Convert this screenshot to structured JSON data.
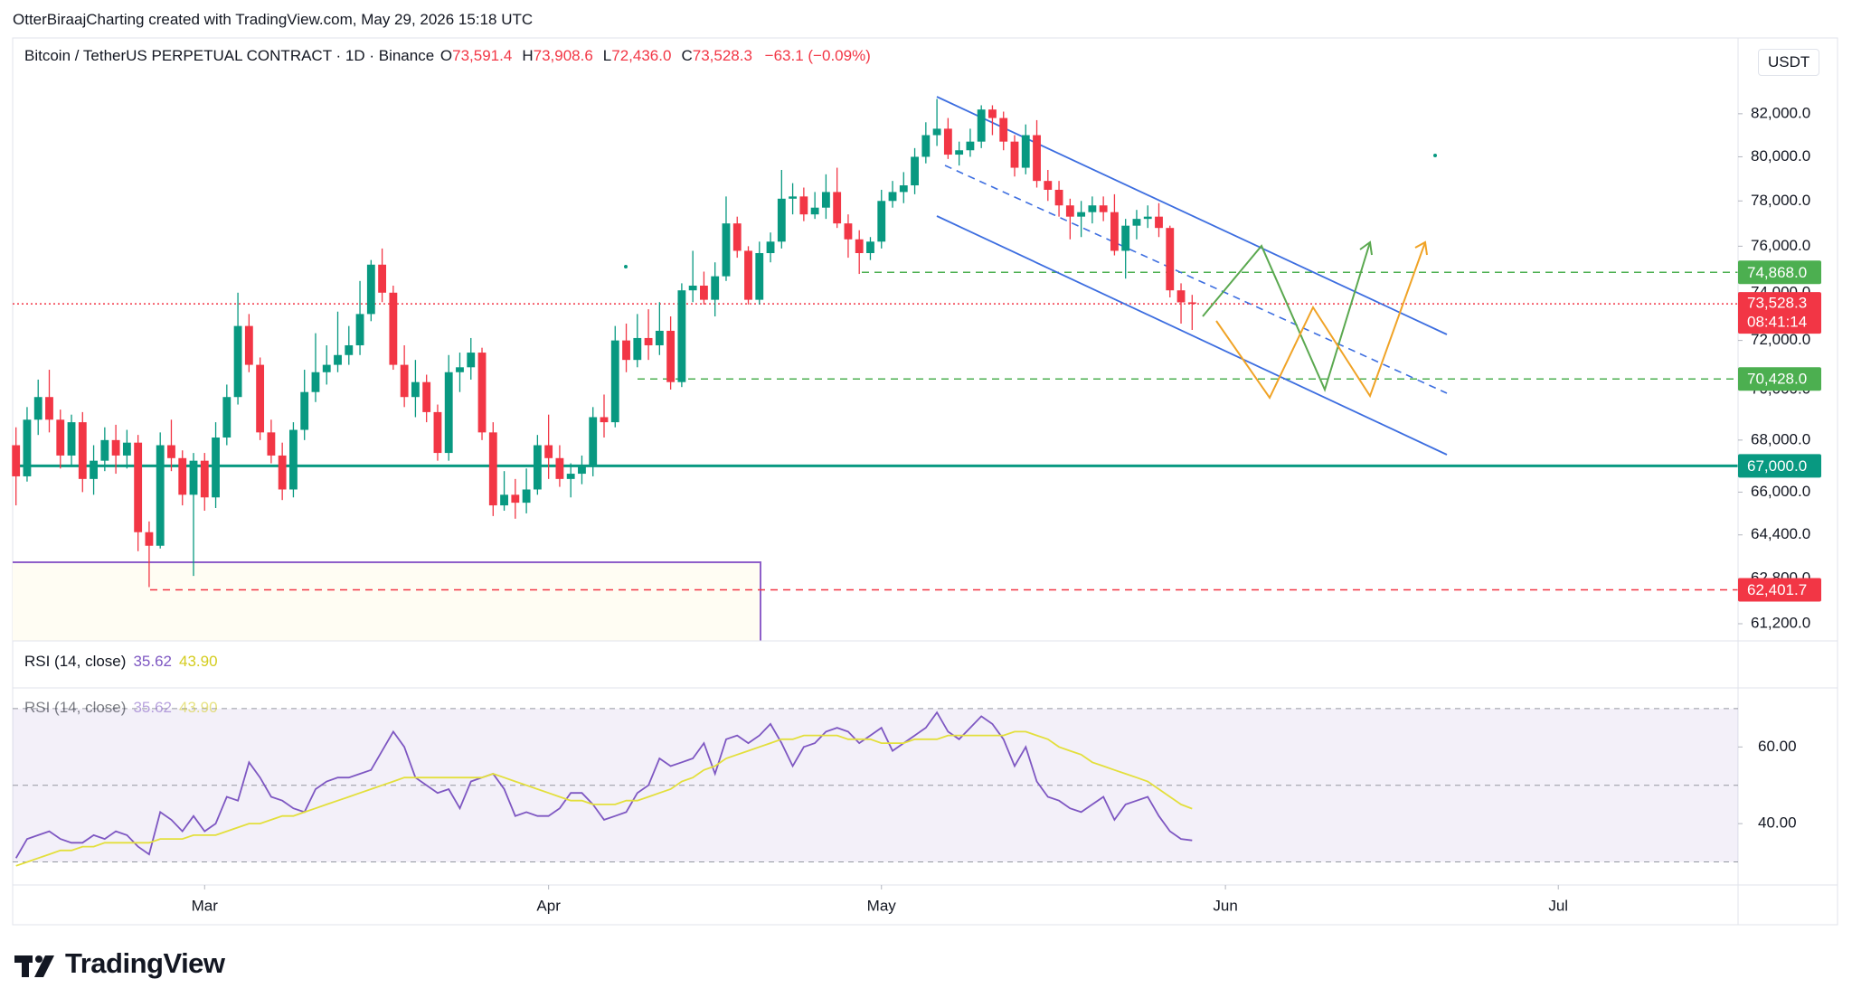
{
  "header": "OtterBiraajCharting created with TradingView.com, May 29, 2026 15:18 UTC",
  "footer": "TradingView",
  "chart_data": [
    {
      "type": "candlestick",
      "legend": {
        "symbol": "Bitcoin / TetherUS PERPETUAL CONTRACT · 1D · Binance",
        "ohlc": [
          [
            "O",
            "73,591.4"
          ],
          [
            "H",
            "73,908.6"
          ],
          [
            "L",
            "72,436.0"
          ],
          [
            "C",
            "73,528.3"
          ]
        ],
        "change": "−63.1 (−0.09%)"
      },
      "currency": "USDT",
      "up_color": "#089981",
      "down_color": "#f23645",
      "log_scale": true,
      "ylim": [
        60600,
        85600
      ],
      "yticks": [
        {
          "value": 82000,
          "label": "82,000.0"
        },
        {
          "value": 80000,
          "label": "80,000.0"
        },
        {
          "value": 78000,
          "label": "78,000.0"
        },
        {
          "value": 76000,
          "label": "76,000.0"
        },
        {
          "value": 74000,
          "label": "74,000.0"
        },
        {
          "value": 72000,
          "label": "72,000.0"
        },
        {
          "value": 70000,
          "label": "70,000.0"
        },
        {
          "value": 68000,
          "label": "68,000.0"
        },
        {
          "value": 66000,
          "label": "66,000.0"
        },
        {
          "value": 64400,
          "label": "64,400.0"
        },
        {
          "value": 62800,
          "label": "62,800.0"
        },
        {
          "value": 61200,
          "label": "61,200.0"
        }
      ],
      "xlim": [
        -0.3,
        155.2
      ],
      "xticks": [
        {
          "value": 17,
          "label": "Mar"
        },
        {
          "value": 48,
          "label": "Apr"
        },
        {
          "value": 78,
          "label": "May"
        },
        {
          "value": 109,
          "label": "Jun"
        },
        {
          "value": 139,
          "label": "Jul"
        }
      ],
      "levels": [
        {
          "value": 74868.0,
          "label": "74,868.0",
          "color": "#4caf50",
          "style": "dashed"
        },
        {
          "value": 70428.0,
          "label": "70,428.0",
          "color": "#4caf50",
          "style": "dashed"
        },
        {
          "value": 67000.0,
          "label": "67,000.0",
          "color": "#089981",
          "style": "solid"
        },
        {
          "value": 62401.7,
          "label": "62,401.7",
          "color": "#f23645",
          "style": "dashed"
        }
      ],
      "last_price": {
        "value": 73528.3,
        "label": "73,528.3",
        "countdown": "08:41:14",
        "color": "#f23645"
      },
      "candles": [
        [
          67800,
          68500,
          65500,
          66600
        ],
        [
          66600,
          69300,
          66400,
          68800
        ],
        [
          68800,
          70400,
          68200,
          69700
        ],
        [
          69700,
          70800,
          68300,
          68800
        ],
        [
          68800,
          69200,
          66900,
          67400
        ],
        [
          67400,
          69000,
          67000,
          68700
        ],
        [
          68700,
          69100,
          66000,
          66500
        ],
        [
          66500,
          67800,
          65900,
          67200
        ],
        [
          67200,
          68500,
          66800,
          68000
        ],
        [
          68000,
          68600,
          66700,
          67400
        ],
        [
          67400,
          68400,
          66900,
          67900
        ],
        [
          67900,
          68200,
          63800,
          64500
        ],
        [
          64500,
          64900,
          62500,
          64000
        ],
        [
          64000,
          68300,
          63900,
          67800
        ],
        [
          67800,
          68800,
          66800,
          67300
        ],
        [
          67300,
          67600,
          65500,
          65900
        ],
        [
          65900,
          67500,
          62900,
          67200
        ],
        [
          67200,
          67500,
          65300,
          65800
        ],
        [
          65800,
          68700,
          65400,
          68100
        ],
        [
          68100,
          70200,
          67800,
          69700
        ],
        [
          69700,
          74000,
          69400,
          72600
        ],
        [
          72600,
          73100,
          70700,
          71000
        ],
        [
          71000,
          71300,
          68000,
          68300
        ],
        [
          68300,
          68800,
          67100,
          67400
        ],
        [
          67400,
          67900,
          65700,
          66100
        ],
        [
          66100,
          68700,
          65800,
          68400
        ],
        [
          68400,
          70800,
          68000,
          69900
        ],
        [
          69900,
          72300,
          69500,
          70700
        ],
        [
          70700,
          71800,
          70200,
          71000
        ],
        [
          71000,
          73200,
          70700,
          71400
        ],
        [
          71400,
          72600,
          71000,
          71800
        ],
        [
          71800,
          74500,
          71400,
          73100
        ],
        [
          73100,
          75400,
          72800,
          75200
        ],
        [
          75200,
          75900,
          73600,
          74000
        ],
        [
          74000,
          74300,
          70800,
          71000
        ],
        [
          71000,
          71800,
          69300,
          69700
        ],
        [
          69700,
          71200,
          68900,
          70300
        ],
        [
          70300,
          70600,
          68700,
          69100
        ],
        [
          69100,
          69400,
          67200,
          67500
        ],
        [
          67500,
          71400,
          67200,
          70700
        ],
        [
          70700,
          71500,
          69900,
          70900
        ],
        [
          70900,
          72100,
          70400,
          71500
        ],
        [
          71500,
          71700,
          68000,
          68300
        ],
        [
          68300,
          68700,
          65100,
          65500
        ],
        [
          65500,
          66800,
          65300,
          65900
        ],
        [
          65900,
          66500,
          65000,
          65600
        ],
        [
          65600,
          66900,
          65200,
          66100
        ],
        [
          66100,
          68200,
          65900,
          67800
        ],
        [
          67800,
          69000,
          66500,
          67300
        ],
        [
          67300,
          67800,
          66200,
          66500
        ],
        [
          66500,
          67100,
          65800,
          66700
        ],
        [
          66700,
          67400,
          66300,
          67000
        ],
        [
          67000,
          69300,
          66600,
          68900
        ],
        [
          68900,
          69800,
          68100,
          68700
        ],
        [
          68700,
          72600,
          68500,
          72000
        ],
        [
          72000,
          72700,
          70700,
          71200
        ],
        [
          71200,
          73100,
          70900,
          72100
        ],
        [
          72100,
          73300,
          71200,
          71800
        ],
        [
          71800,
          73600,
          71400,
          72400
        ],
        [
          72400,
          73000,
          70000,
          70300
        ],
        [
          70300,
          74400,
          70100,
          74100
        ],
        [
          74100,
          75800,
          73600,
          74300
        ],
        [
          74300,
          74900,
          73500,
          73700
        ],
        [
          73700,
          75300,
          73000,
          74700
        ],
        [
          74700,
          78200,
          74500,
          77000
        ],
        [
          77000,
          77300,
          75500,
          75800
        ],
        [
          75800,
          76000,
          73500,
          73700
        ],
        [
          73700,
          76200,
          73500,
          75700
        ],
        [
          75700,
          76600,
          75300,
          76200
        ],
        [
          76200,
          79400,
          75900,
          78100
        ],
        [
          78100,
          78800,
          77400,
          78200
        ],
        [
          78200,
          78600,
          77100,
          77400
        ],
        [
          77400,
          78400,
          77200,
          77700
        ],
        [
          77700,
          79200,
          77200,
          78400
        ],
        [
          78400,
          79500,
          76800,
          77000
        ],
        [
          77000,
          77400,
          75500,
          76300
        ],
        [
          76300,
          76700,
          74800,
          75700
        ],
        [
          75700,
          76400,
          75400,
          76200
        ],
        [
          76200,
          78500,
          75900,
          78000
        ],
        [
          78000,
          78900,
          77700,
          78400
        ],
        [
          78400,
          79300,
          77900,
          78700
        ],
        [
          78700,
          80400,
          78300,
          80000
        ],
        [
          80000,
          81600,
          79700,
          81000
        ],
        [
          81000,
          82700,
          80500,
          81300
        ],
        [
          81300,
          81800,
          79900,
          80100
        ],
        [
          80100,
          80700,
          79600,
          80300
        ],
        [
          80300,
          81300,
          80000,
          80700
        ],
        [
          80700,
          82400,
          80400,
          82200
        ],
        [
          82200,
          82400,
          81000,
          81800
        ],
        [
          81800,
          82100,
          80300,
          80700
        ],
        [
          80700,
          81000,
          79100,
          79500
        ],
        [
          79500,
          81500,
          79200,
          81000
        ],
        [
          81000,
          81700,
          78600,
          78900
        ],
        [
          78900,
          79400,
          78000,
          78500
        ],
        [
          78500,
          78900,
          77300,
          77800
        ],
        [
          77800,
          78100,
          76300,
          77300
        ],
        [
          77300,
          78000,
          76400,
          77500
        ],
        [
          77500,
          78200,
          77000,
          77800
        ],
        [
          77800,
          78200,
          77100,
          77500
        ],
        [
          77500,
          78300,
          75600,
          75800
        ],
        [
          75800,
          77200,
          74600,
          76900
        ],
        [
          76900,
          77600,
          76300,
          77200
        ],
        [
          77200,
          77800,
          76800,
          77300
        ],
        [
          77300,
          77900,
          76400,
          76800
        ],
        [
          76800,
          76900,
          73800,
          74100
        ],
        [
          74100,
          74400,
          72700,
          73591.4
        ],
        [
          73591.4,
          73908.6,
          72436.0,
          73528.3
        ]
      ]
    },
    {
      "type": "line",
      "title": "RSI (14, close)",
      "ylim": [
        24,
        75.4
      ],
      "yticks": [
        {
          "value": 60,
          "label": "60.00"
        },
        {
          "value": 40,
          "label": "40.00"
        }
      ],
      "bands": [
        70,
        50,
        30
      ],
      "series": [
        {
          "color": "#7e57c2",
          "last_label": "35.62",
          "values": [
            31,
            36,
            37,
            38,
            36,
            35,
            35,
            37,
            36,
            38,
            37,
            34,
            32,
            43,
            41,
            38,
            42,
            38,
            40,
            47,
            46,
            56,
            52,
            47,
            46,
            44,
            43,
            49,
            51,
            52,
            52,
            53,
            54,
            59,
            64,
            60,
            52,
            50,
            48,
            49,
            44,
            51,
            52,
            53,
            49,
            42,
            43,
            42,
            42,
            44,
            48,
            48,
            45,
            41,
            42,
            43,
            48,
            50,
            57,
            55,
            56,
            57,
            61,
            53,
            62,
            63,
            61,
            63,
            66,
            61,
            55,
            60,
            61,
            64,
            65,
            64,
            61,
            63,
            65,
            59,
            61,
            63,
            65,
            69,
            64,
            62,
            65,
            68,
            66,
            62,
            55,
            60,
            51,
            47,
            46,
            44,
            43,
            45,
            47,
            41,
            45,
            46,
            47,
            42,
            38,
            36,
            35.62
          ]
        },
        {
          "color": "#e3df3c",
          "last_label": "43.90",
          "values": [
            29,
            30,
            31,
            32,
            33,
            33,
            34,
            34,
            35,
            35,
            35,
            35,
            35,
            36,
            36,
            36,
            37,
            37,
            37,
            38,
            39,
            40,
            40,
            41,
            42,
            42,
            43,
            44,
            45,
            46,
            47,
            48,
            49,
            50,
            51,
            52,
            52,
            52,
            52,
            52,
            52,
            52,
            52,
            53,
            52,
            51,
            50,
            49,
            48,
            47,
            46,
            46,
            45,
            45,
            45,
            46,
            46,
            47,
            48,
            49,
            51,
            52,
            54,
            55,
            57,
            58,
            59,
            60,
            61,
            62,
            62,
            63,
            63,
            63,
            63,
            62,
            62,
            62,
            61,
            61,
            61,
            62,
            62,
            62,
            63,
            63,
            63,
            63,
            63,
            63,
            64,
            64,
            63,
            62,
            60,
            59,
            58,
            56,
            55,
            54,
            53,
            52,
            51,
            49,
            47,
            45,
            43.9
          ]
        }
      ]
    }
  ]
}
